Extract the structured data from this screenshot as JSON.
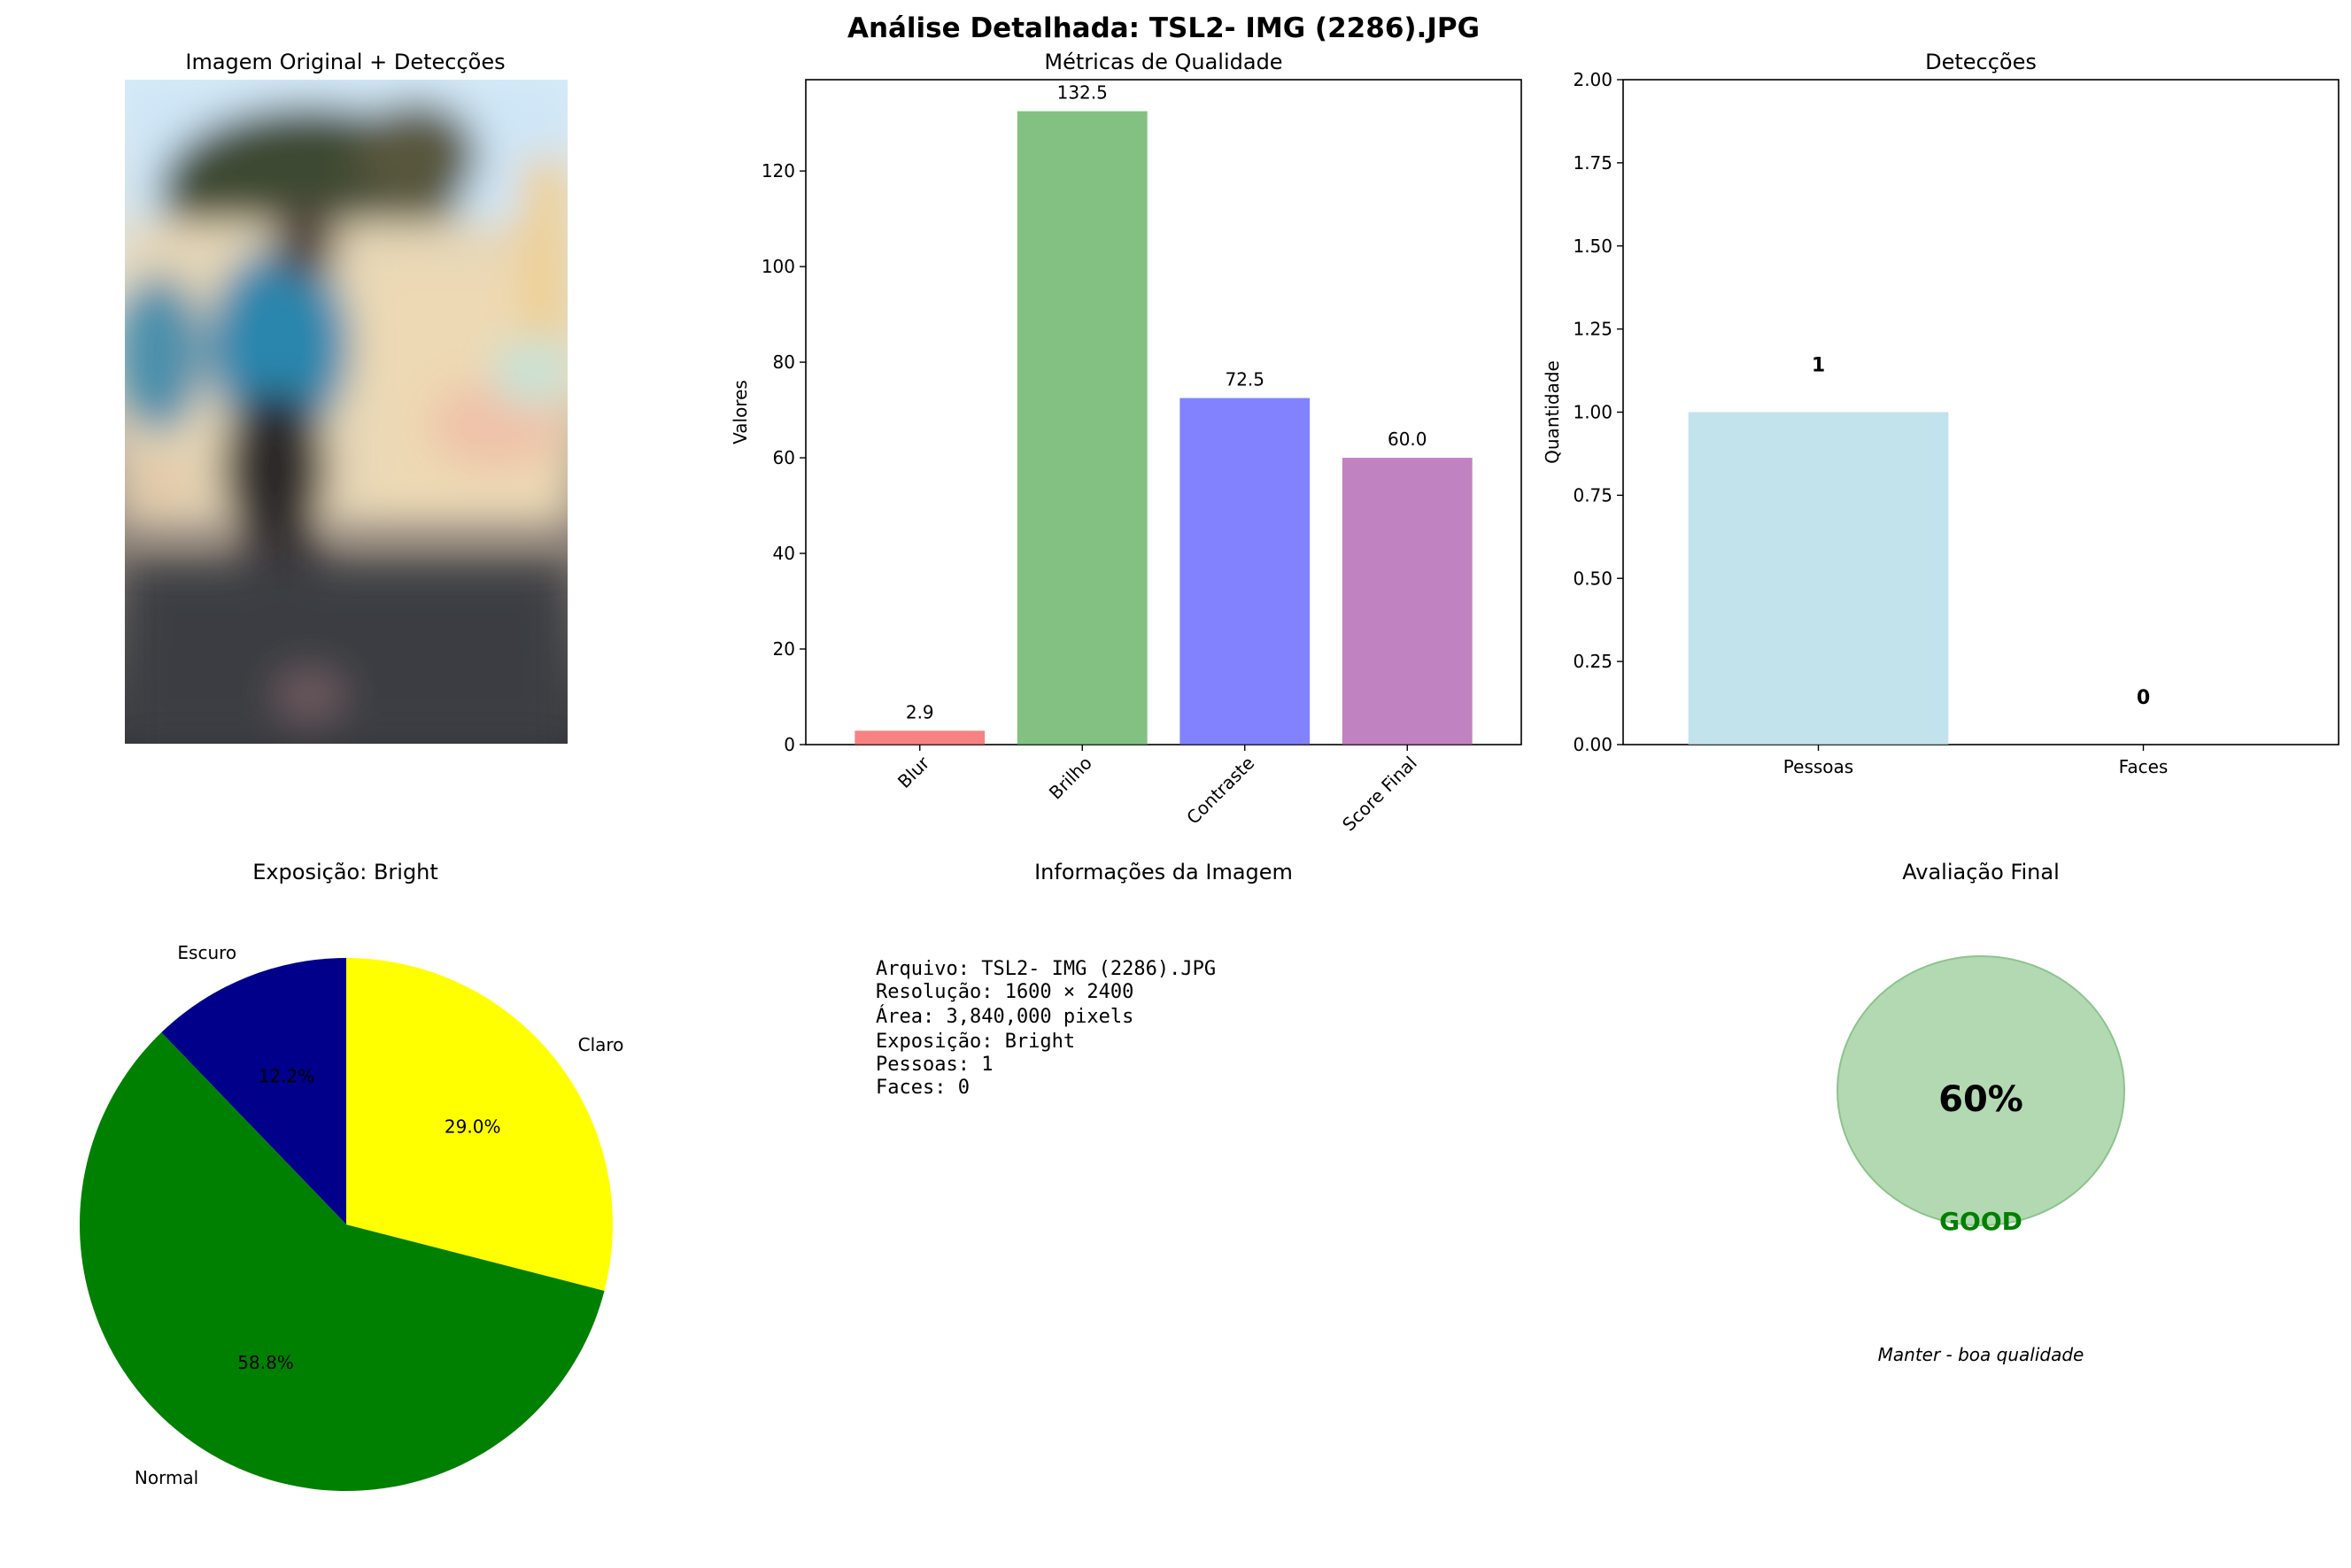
{
  "title": "Análise Detalhada: TSL2- IMG  (2286).JPG",
  "panels": {
    "image": {
      "title": "Imagem Original + Detecções"
    },
    "metrics": {
      "title": "Métricas de Qualidade"
    },
    "detections": {
      "title": "Detecções"
    },
    "exposure": {
      "title": "Exposição: Bright"
    },
    "info": {
      "title": "Informações da Imagem",
      "lines": [
        "Arquivo: TSL2- IMG  (2286).JPG",
        "Resolução: 1600 × 2400",
        "Área: 3,840,000 pixels",
        "Exposição: Bright",
        "Pessoas: 1",
        "Faces: 0"
      ]
    },
    "final": {
      "title": "Avaliação Final",
      "score_text": "60%",
      "score": 0.6,
      "grade": "GOOD",
      "grade_color": "#008000",
      "circle_color": "#b3d9b3",
      "recommendation": "Manter - boa qualidade"
    }
  },
  "chart_data": [
    {
      "type": "bar",
      "title": "Métricas de Qualidade",
      "ylabel": "Valores",
      "categories": [
        "Blur",
        "Brilho",
        "Contraste",
        "Score Final"
      ],
      "values": [
        2.9,
        132.5,
        72.5,
        60.0
      ],
      "value_labels": [
        "2.9",
        "132.5",
        "72.5",
        "60.0"
      ],
      "colors": [
        "#f44d4d",
        "#4da64d",
        "#4d4dff",
        "#a64da6"
      ],
      "ylim": [
        0,
        139.1
      ],
      "yticks": [
        0,
        20,
        40,
        60,
        80,
        100,
        120
      ]
    },
    {
      "type": "bar",
      "title": "Detecções",
      "ylabel": "Quantidade",
      "categories": [
        "Pessoas",
        "Faces"
      ],
      "values": [
        1,
        0
      ],
      "value_labels": [
        "1",
        "0"
      ],
      "colors": [
        "#add8e6",
        "#ffb6c1"
      ],
      "ylim": [
        0,
        2.0
      ],
      "yticks": [
        "0.00",
        "0.25",
        "0.50",
        "0.75",
        "1.00",
        "1.25",
        "1.50",
        "1.75",
        "2.00"
      ]
    },
    {
      "type": "pie",
      "title": "Exposição: Bright",
      "labels": [
        "Escuro",
        "Normal",
        "Claro"
      ],
      "values": [
        12.2,
        58.8,
        29.0
      ],
      "pct_labels": [
        "12.2%",
        "58.8%",
        "29.0%"
      ],
      "colors": [
        "#00008b",
        "#008000",
        "#ffff00"
      ]
    }
  ]
}
